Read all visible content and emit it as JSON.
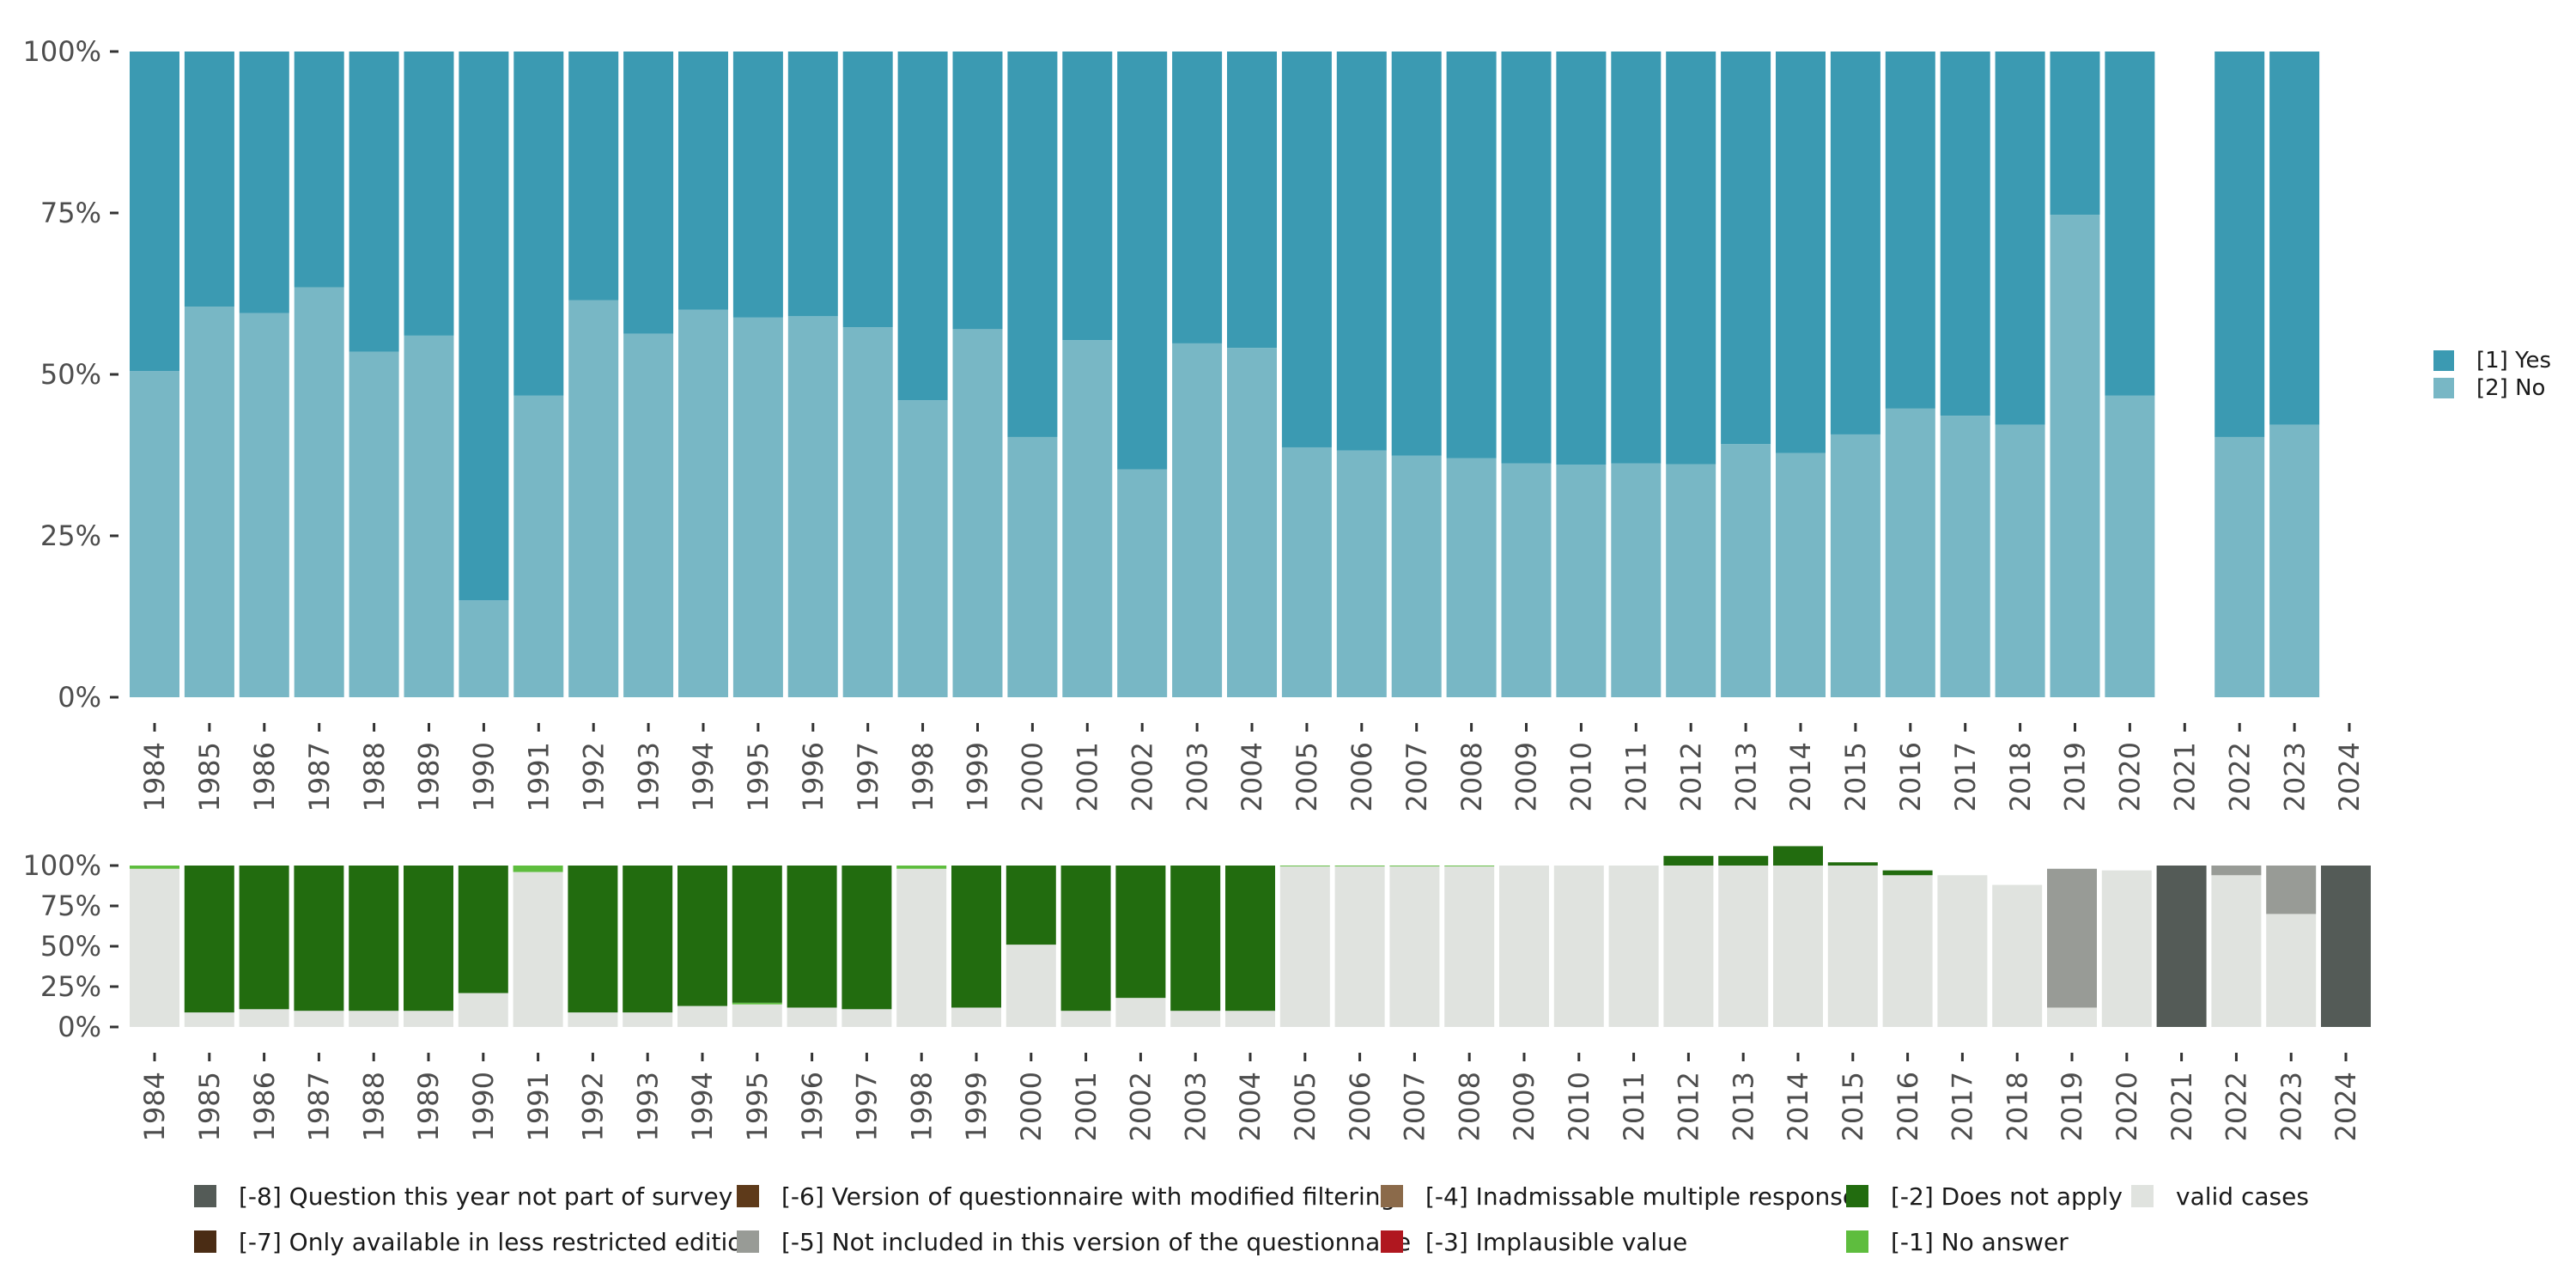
{
  "chart_data": [
    {
      "type": "bar",
      "stacked": true,
      "title": "",
      "xlabel": "",
      "ylabel": "",
      "ylim": [
        0,
        100
      ],
      "yticks": [
        "0%",
        "25%",
        "50%",
        "75%",
        "100%"
      ],
      "categories": [
        "1984",
        "1985",
        "1986",
        "1987",
        "1988",
        "1989",
        "1990",
        "1991",
        "1992",
        "1993",
        "1994",
        "1995",
        "1996",
        "1997",
        "1998",
        "1999",
        "2000",
        "2001",
        "2002",
        "2003",
        "2004",
        "2005",
        "2006",
        "2007",
        "2008",
        "2009",
        "2010",
        "2011",
        "2012",
        "2013",
        "2014",
        "2015",
        "2016",
        "2017",
        "2018",
        "2019",
        "2020",
        "2021",
        "2022",
        "2023",
        "2024"
      ],
      "series": [
        {
          "name": "[2] No",
          "color": "#78b7c5",
          "values": [
            50.5,
            60.5,
            59.5,
            63.5,
            53.5,
            56,
            15,
            46.7,
            61.5,
            56.3,
            60,
            58.8,
            59,
            57.3,
            46,
            57,
            40.3,
            55.3,
            35.3,
            54.8,
            54.1,
            38.7,
            38.2,
            37.4,
            37,
            36.2,
            36,
            36.2,
            36.1,
            39.2,
            37.8,
            40.7,
            44.7,
            43.6,
            42.2,
            74.7,
            46.7,
            null,
            40.3,
            42.2,
            null
          ]
        },
        {
          "name": "[1] Yes",
          "color": "#3b9ab2",
          "values": [
            49.5,
            39.5,
            40.5,
            36.5,
            46.5,
            44,
            85,
            53.3,
            38.5,
            43.7,
            40,
            41.2,
            41,
            42.7,
            54,
            43,
            59.7,
            44.7,
            64.7,
            45.2,
            45.9,
            61.3,
            61.8,
            62.6,
            63,
            63.8,
            64,
            63.8,
            63.9,
            60.8,
            62.2,
            59.3,
            55.3,
            56.4,
            57.8,
            25.3,
            53.3,
            null,
            59.7,
            57.8,
            null
          ]
        }
      ],
      "legend": {
        "position": "right",
        "items": [
          "[1] Yes",
          "[2] No"
        ]
      }
    },
    {
      "type": "bar",
      "stacked": true,
      "title": "",
      "xlabel": "",
      "ylabel": "",
      "ylim": [
        0,
        100
      ],
      "yticks": [
        "0%",
        "25%",
        "50%",
        "75%",
        "100%"
      ],
      "categories": [
        "1984",
        "1985",
        "1986",
        "1987",
        "1988",
        "1989",
        "1990",
        "1991",
        "1992",
        "1993",
        "1994",
        "1995",
        "1996",
        "1997",
        "1998",
        "1999",
        "2000",
        "2001",
        "2002",
        "2003",
        "2004",
        "2005",
        "2006",
        "2007",
        "2008",
        "2009",
        "2010",
        "2011",
        "2012",
        "2013",
        "2014",
        "2015",
        "2016",
        "2017",
        "2018",
        "2019",
        "2020",
        "2021",
        "2022",
        "2023",
        "2024"
      ],
      "series": [
        {
          "name": "valid cases",
          "color": "#e0e3df",
          "values": [
            98,
            9,
            11,
            10,
            10,
            10,
            21,
            96,
            9,
            9,
            13,
            14,
            12,
            11,
            98,
            12,
            51,
            10,
            18,
            10,
            10,
            99.5,
            99.5,
            99.5,
            99.5,
            100,
            100,
            100,
            100,
            100,
            100,
            100,
            94,
            94,
            88,
            12,
            97,
            0,
            94,
            70,
            0
          ]
        },
        {
          "name": "[-1] No answer",
          "color": "#5ebd3e",
          "values": [
            2,
            0,
            0,
            0,
            0,
            0,
            0,
            4,
            0,
            0,
            0,
            1,
            0,
            0,
            2,
            0,
            0,
            0,
            0,
            0,
            0,
            0.5,
            0.5,
            0.5,
            0.5,
            0,
            0,
            0,
            0,
            0,
            0,
            0,
            0,
            0,
            0,
            0,
            0,
            0,
            0,
            0,
            0
          ]
        },
        {
          "name": "[-2] Does not apply",
          "color": "#226c0f",
          "values": [
            0,
            91,
            89,
            90,
            90,
            90,
            79,
            0,
            91,
            91,
            87,
            85,
            88,
            89,
            0,
            88,
            49,
            90,
            82,
            90,
            90,
            0,
            0,
            0,
            0,
            0,
            0,
            0,
            6,
            6,
            12,
            2,
            3,
            0,
            0,
            0,
            0,
            0,
            0,
            0,
            0
          ]
        },
        {
          "name": "[-5] Not included in this version of the questionnaire",
          "color": "#989b96",
          "values": [
            0,
            0,
            0,
            0,
            0,
            0,
            0,
            0,
            0,
            0,
            0,
            0,
            0,
            0,
            0,
            0,
            0,
            0,
            0,
            0,
            0,
            0,
            0,
            0,
            0,
            0,
            0,
            0,
            0,
            0,
            0,
            0,
            0,
            0,
            0,
            86,
            0,
            0,
            6,
            30,
            0
          ]
        },
        {
          "name": "[-8] Question this year not part of survey",
          "color": "#545b57",
          "values": [
            0,
            0,
            0,
            0,
            0,
            0,
            0,
            0,
            0,
            0,
            0,
            0,
            0,
            0,
            0,
            0,
            0,
            0,
            0,
            0,
            0,
            0,
            0,
            0,
            0,
            0,
            0,
            0,
            0,
            0,
            0,
            0,
            0,
            0,
            0,
            0,
            0,
            100,
            0,
            0,
            100
          ]
        }
      ],
      "legend": {
        "position": "bottom",
        "items": [
          {
            "label": "[-8] Question this year not part of survey",
            "color": "#545b57"
          },
          {
            "label": "[-6] Version of questionnaire with modified filtering",
            "color": "#5e3a1a"
          },
          {
            "label": "[-4] Inadmissable multiple response",
            "color": "#8b6a4a"
          },
          {
            "label": "[-2] Does not apply",
            "color": "#226c0f"
          },
          {
            "label": "valid cases",
            "color": "#e0e3df"
          },
          {
            "label": "[-7] Only available in less restricted edition",
            "color": "#4a2c14"
          },
          {
            "label": "[-5] Not included in this version of the questionnaire",
            "color": "#989b96"
          },
          {
            "label": "[-3] Implausible value",
            "color": "#b0171f"
          },
          {
            "label": "[-1] No answer",
            "color": "#5ebd3e"
          }
        ]
      }
    }
  ]
}
